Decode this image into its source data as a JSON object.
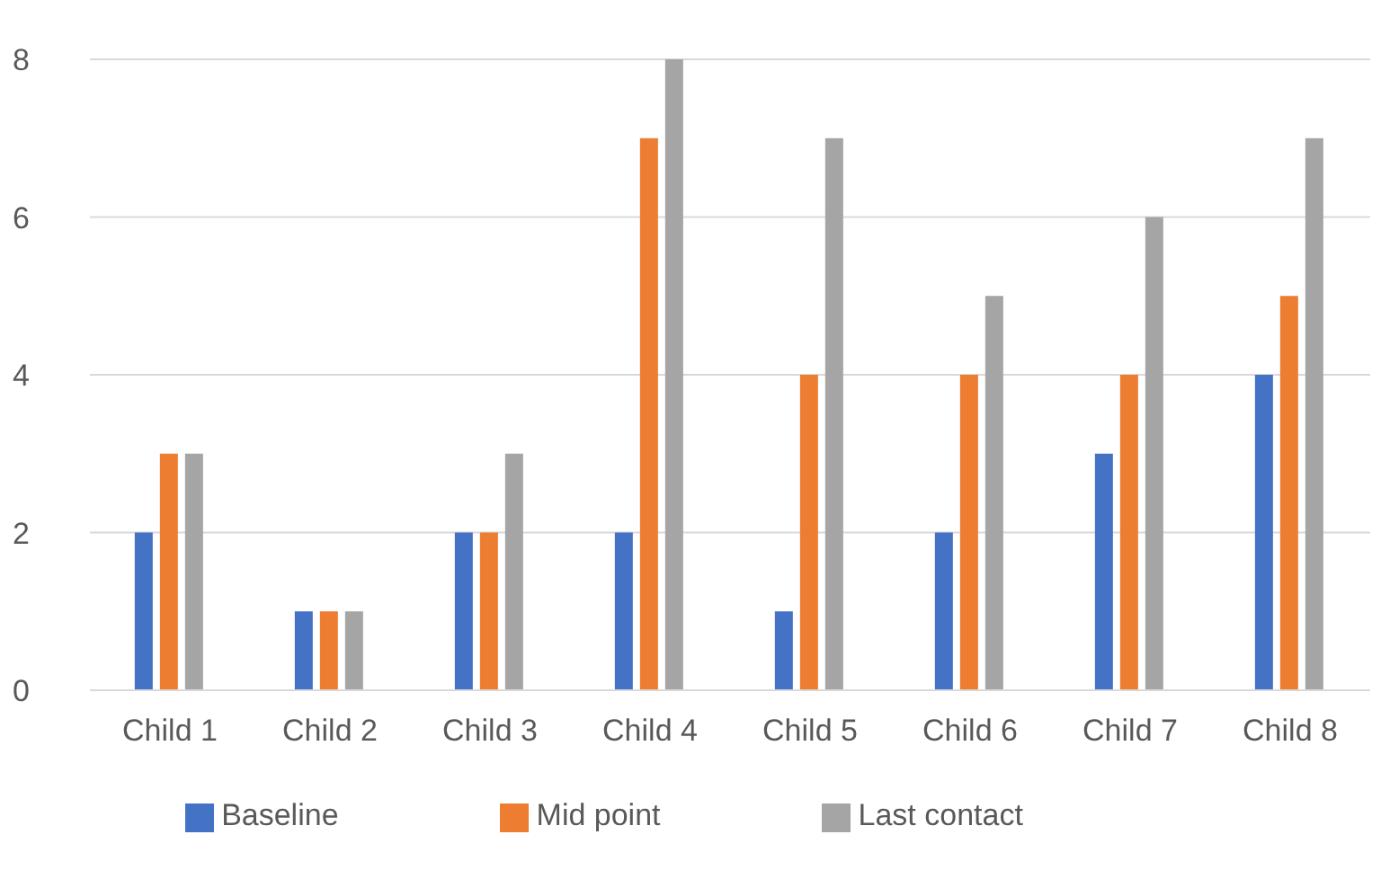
{
  "chart_data": {
    "type": "bar",
    "categories": [
      "Child 1",
      "Child 2",
      "Child 3",
      "Child 4",
      "Child 5",
      "Child 6",
      "Child 7",
      "Child 8"
    ],
    "series": [
      {
        "name": "Baseline",
        "color": "#4472c4",
        "values": [
          2,
          1,
          2,
          2,
          1,
          2,
          3,
          4
        ]
      },
      {
        "name": "Mid point",
        "color": "#ed7d31",
        "values": [
          3,
          1,
          2,
          7,
          4,
          4,
          4,
          5
        ]
      },
      {
        "name": "Last contact",
        "color": "#a5a5a5",
        "values": [
          3,
          1,
          3,
          8,
          7,
          5,
          6,
          7
        ]
      }
    ],
    "ylim": [
      0,
      8
    ],
    "yticks": [
      0,
      2,
      4,
      6,
      8
    ],
    "grid": "y",
    "legend": "bottom"
  }
}
